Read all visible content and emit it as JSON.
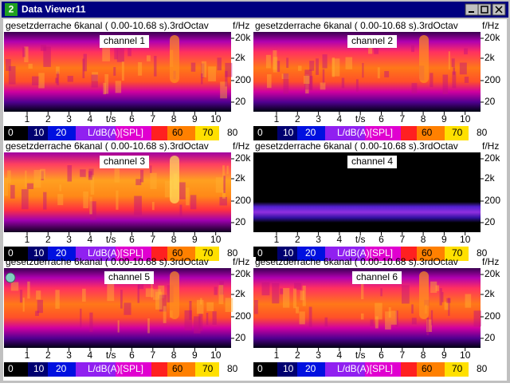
{
  "window": {
    "icon": "2",
    "title": "Data Viewer11"
  },
  "axes": {
    "y_unit": "f/Hz",
    "y_ticks": [
      "20k",
      "2k",
      "200",
      "20"
    ],
    "x_ticks": [
      "1",
      "2",
      "3",
      "4",
      "t/s",
      "6",
      "7",
      "8",
      "9",
      "10"
    ],
    "scale_labels": [
      "0",
      "10",
      "20",
      "L/dB(A)[SPL]",
      "60",
      "70",
      "80"
    ]
  },
  "panels": [
    {
      "header": "gesetzderrache  6kanal ( 0.00-10.68 s).3rdOctav",
      "channel": "channel 1"
    },
    {
      "header": "gesetzderrache  6kanal ( 0.00-10.68 s).3rdOctav",
      "channel": "channel 2"
    },
    {
      "header": "gesetzderrache  6kanal ( 0.00-10.68 s).3rdOctav",
      "channel": "channel 3"
    },
    {
      "header": "gesetzderrache  6kanal ( 0.00-10.68 s).3rdOctav",
      "channel": "channel 4"
    },
    {
      "header": "gesetzderrache  6kanal ( 0.00-10.68 s).3rdOctav",
      "channel": "channel 5"
    },
    {
      "header": "gesetzderrache  6kanal ( 0.00-10.68 s).3rdOctav",
      "channel": "channel 6"
    }
  ]
}
